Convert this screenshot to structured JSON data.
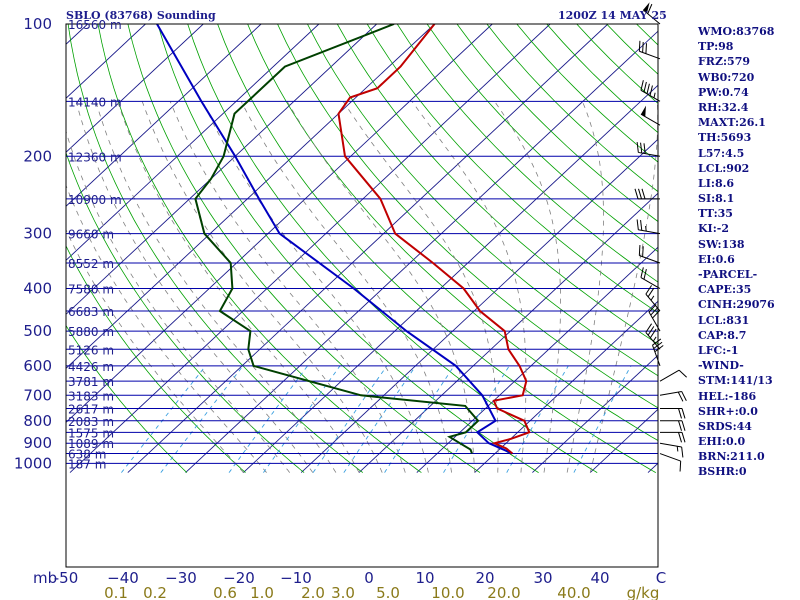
{
  "header": {
    "station_title": "SBLO (83768) Sounding",
    "time_title": "1200Z 14 MAY 25"
  },
  "indices": [
    "WMO:83768",
    "TP:98",
    "FRZ:579",
    "WB0:720",
    "PW:0.74",
    "RH:32.4",
    "MAXT:26.1",
    "TH:5693",
    "L57:4.5",
    "LCL:902",
    "LI:8.6",
    "SI:8.1",
    "TT:35",
    "KI:-2",
    "SW:138",
    "EI:0.6",
    "-PARCEL-",
    "CAPE:35",
    "CINH:29076",
    "LCL:831",
    "CAP:8.7",
    "LFC:-1",
    "-WIND-",
    "STM:141/13",
    "HEL:-186",
    "SHR+:0.0",
    "SRDS:44",
    "EHI:0.0",
    "BRN:211.0",
    "BSHR:0"
  ],
  "colors": {
    "isobar": "#0000aa",
    "isotherm": "#1a1a8a",
    "dry_adiabat": "#00a000",
    "moist_adiabat": "#808080",
    "mixing_ratio": "#3aa0e0",
    "temperature": "#c00000",
    "dewpoint": "#004000",
    "parcel": "#0000c0",
    "wind_barb": "#000000"
  },
  "chart_data": {
    "type": "skew-t",
    "ylabel": "mb",
    "xlabel": "C",
    "mixing_ratio_unit": "g/kg",
    "pressure_ticks": [
      100,
      200,
      300,
      400,
      500,
      600,
      700,
      800,
      900,
      1000
    ],
    "pressure_tick_labels": [
      "100",
      "200",
      "300",
      "400",
      "500",
      "600",
      "700",
      "800",
      "900",
      "1000"
    ],
    "temperature_ticks": [
      -50,
      -40,
      -30,
      -20,
      -10,
      0,
      10,
      20,
      30,
      40
    ],
    "temperature_tick_labels": [
      "-50",
      "−40",
      "−30",
      "−20",
      "−10",
      "0",
      "10",
      "20",
      "30",
      "40"
    ],
    "mixing_ratio_ticks": [
      0.1,
      0.2,
      0.6,
      1.0,
      2.0,
      3.0,
      5.0,
      10.0,
      20.0,
      40.0
    ],
    "mixing_ratio_tick_labels": [
      "0.1",
      "0.2",
      "0.6",
      "1.0",
      "2.0",
      "3.0",
      "5.0",
      "10.0",
      "20.0",
      "40.0"
    ],
    "levels": [
      {
        "p": 100,
        "label": "16560 m"
      },
      {
        "p": 150,
        "label": "14140 m"
      },
      {
        "p": 200,
        "label": "12360 m"
      },
      {
        "p": 250,
        "label": "10900 m"
      },
      {
        "p": 300,
        "label": "9660 m"
      },
      {
        "p": 350,
        "label": "8552 m"
      },
      {
        "p": 400,
        "label": "7580 m"
      },
      {
        "p": 450,
        "label": "6683 m"
      },
      {
        "p": 500,
        "label": "5880 m"
      },
      {
        "p": 550,
        "label": "5126 m"
      },
      {
        "p": 600,
        "label": "4426 m"
      },
      {
        "p": 650,
        "label": "3781 m"
      },
      {
        "p": 700,
        "label": "3183 m"
      },
      {
        "p": 750,
        "label": "2617 m"
      },
      {
        "p": 800,
        "label": "2083 m"
      },
      {
        "p": 850,
        "label": "1575 m"
      },
      {
        "p": 900,
        "label": "1089 m"
      },
      {
        "p": 950,
        "label": "638 m"
      },
      {
        "p": 1000,
        "label": "187 m"
      }
    ],
    "temperature_profile": [
      {
        "p": 100,
        "t": -70
      },
      {
        "p": 125,
        "t": -68
      },
      {
        "p": 140,
        "t": -68
      },
      {
        "p": 147,
        "t": -71
      },
      {
        "p": 160,
        "t": -70
      },
      {
        "p": 200,
        "t": -61
      },
      {
        "p": 250,
        "t": -47
      },
      {
        "p": 300,
        "t": -38
      },
      {
        "p": 350,
        "t": -26
      },
      {
        "p": 400,
        "t": -16
      },
      {
        "p": 450,
        "t": -9
      },
      {
        "p": 500,
        "t": -1
      },
      {
        "p": 550,
        "t": 3
      },
      {
        "p": 600,
        "t": 8
      },
      {
        "p": 650,
        "t": 12
      },
      {
        "p": 700,
        "t": 14
      },
      {
        "p": 720,
        "t": 10
      },
      {
        "p": 750,
        "t": 12
      },
      {
        "p": 800,
        "t": 19
      },
      {
        "p": 850,
        "t": 22
      },
      {
        "p": 880,
        "t": 20
      },
      {
        "p": 900,
        "t": 18
      },
      {
        "p": 925,
        "t": 21
      },
      {
        "p": 950,
        "t": 23
      }
    ],
    "dewpoint_profile": [
      {
        "p": 100,
        "t": -77
      },
      {
        "p": 125,
        "t": -88
      },
      {
        "p": 150,
        "t": -88
      },
      {
        "p": 160,
        "t": -88
      },
      {
        "p": 200,
        "t": -82
      },
      {
        "p": 225,
        "t": -80
      },
      {
        "p": 250,
        "t": -79
      },
      {
        "p": 300,
        "t": -71
      },
      {
        "p": 350,
        "t": -61
      },
      {
        "p": 400,
        "t": -56
      },
      {
        "p": 450,
        "t": -54
      },
      {
        "p": 500,
        "t": -45
      },
      {
        "p": 550,
        "t": -42
      },
      {
        "p": 600,
        "t": -38
      },
      {
        "p": 700,
        "t": -14
      },
      {
        "p": 740,
        "t": 6
      },
      {
        "p": 800,
        "t": 11
      },
      {
        "p": 850,
        "t": 11
      },
      {
        "p": 870,
        "t": 9
      },
      {
        "p": 900,
        "t": 12
      },
      {
        "p": 930,
        "t": 15
      },
      {
        "p": 950,
        "t": 16
      }
    ],
    "parcel_profile": [
      {
        "p": 950,
        "t": 23
      },
      {
        "p": 900,
        "t": 17
      },
      {
        "p": 850,
        "t": 13
      },
      {
        "p": 800,
        "t": 14
      },
      {
        "p": 700,
        "t": 7
      },
      {
        "p": 600,
        "t": -3
      },
      {
        "p": 500,
        "t": -18
      },
      {
        "p": 400,
        "t": -35
      },
      {
        "p": 300,
        "t": -58
      },
      {
        "p": 250,
        "t": -68
      },
      {
        "p": 200,
        "t": -80
      },
      {
        "p": 150,
        "t": -96
      },
      {
        "p": 100,
        "t": -118
      }
    ],
    "wind_profile": [
      {
        "p": 950,
        "dir": 110,
        "spd": 10
      },
      {
        "p": 900,
        "dir": 100,
        "spd": 15
      },
      {
        "p": 850,
        "dir": 90,
        "spd": 20
      },
      {
        "p": 800,
        "dir": 90,
        "spd": 20
      },
      {
        "p": 750,
        "dir": 90,
        "spd": 20
      },
      {
        "p": 700,
        "dir": 80,
        "spd": 20
      },
      {
        "p": 650,
        "dir": 60,
        "spd": 10
      },
      {
        "p": 600,
        "dir": 340,
        "spd": 30
      },
      {
        "p": 550,
        "dir": 320,
        "spd": 35
      },
      {
        "p": 500,
        "dir": 330,
        "spd": 30
      },
      {
        "p": 450,
        "dir": 320,
        "spd": 25
      },
      {
        "p": 400,
        "dir": 300,
        "spd": 20
      },
      {
        "p": 350,
        "dir": 290,
        "spd": 20
      },
      {
        "p": 300,
        "dir": 280,
        "spd": 25
      },
      {
        "p": 250,
        "dir": 270,
        "spd": 30
      },
      {
        "p": 200,
        "dir": 280,
        "spd": 30
      },
      {
        "p": 170,
        "dir": 300,
        "spd": 50
      },
      {
        "p": 150,
        "dir": 300,
        "spd": 45
      },
      {
        "p": 120,
        "dir": 290,
        "spd": 30
      },
      {
        "p": 100,
        "dir": 310,
        "spd": 60
      }
    ]
  }
}
